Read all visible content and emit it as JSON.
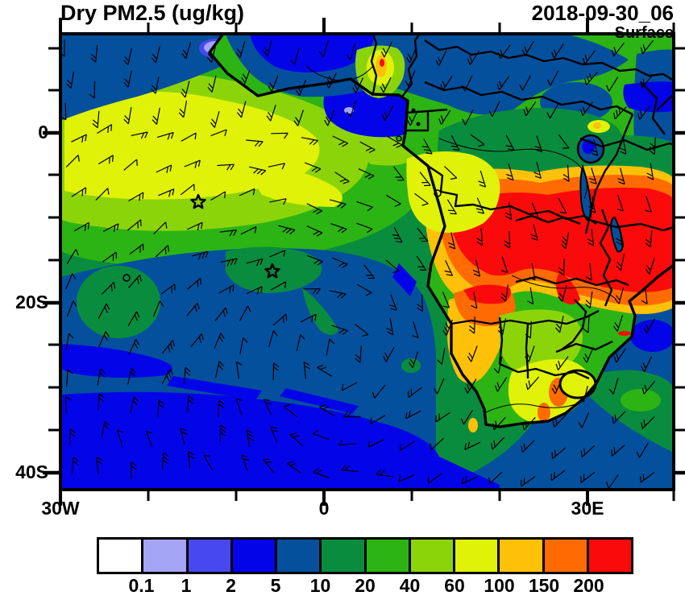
{
  "header": {
    "title": "Dry PM2.5 (ug/kg)",
    "datetime": "2018-09-30_06",
    "level": "Surface"
  },
  "axes": {
    "y_labels": [
      "0",
      "20S",
      "40S"
    ],
    "x_labels": [
      "30W",
      "0",
      "30E"
    ],
    "y_axis": "latitude",
    "x_axis": "longitude"
  },
  "colorbar": {
    "labels": [
      "0.1",
      "1",
      "2",
      "5",
      "10",
      "20",
      "40",
      "60",
      "100",
      "150",
      "200"
    ],
    "colors": [
      "#FFFFFF",
      "#A5A5F5",
      "#4848F0",
      "#0404E8",
      "#05509C",
      "#0A8C3E",
      "#2CB414",
      "#8CD40A",
      "#DFF207",
      "#FFC107",
      "#FF6B00",
      "#FA0A0A"
    ],
    "units": "ug/kg"
  },
  "chart_data": {
    "type": "heatmap",
    "title": "Dry PM2.5 (ug/kg)",
    "valid_time": "2018-09-30_06",
    "vertical_level": "Surface",
    "units": "ug/kg",
    "scale_breaks": [
      0.1,
      1,
      2,
      5,
      10,
      20,
      40,
      60,
      100,
      150,
      200
    ],
    "x_range_ticks": [
      "30W",
      "0",
      "30E"
    ],
    "y_range_ticks": [
      "0",
      "20S",
      "40S"
    ],
    "grid": false,
    "legend_position": "bottom",
    "field_summary": [
      {
        "region": "Sahel band across northern edge of map",
        "value_ug_kg": "2-10"
      },
      {
        "region": "Tropical South Atlantic smoke plume (0-8S, 30W-5E)",
        "value_ug_kg": "40-100"
      },
      {
        "region": "Gulf of Guinea coastal waters (Nigeria/Cameroon coast)",
        "value_ug_kg": "2-5"
      },
      {
        "region": "Congo Basin interior",
        "value_ug_kg": "10-40"
      },
      {
        "region": "Angola / S. DRC / Zambia biomass-burning core (8-17S)",
        "value_ug_kg": ">200 core, 100-200 fringe"
      },
      {
        "region": "Namibia / Botswana",
        "value_ug_kg": "60-150"
      },
      {
        "region": "South African interior / Highveld",
        "value_ug_kg": "40-100 with 150-200 spots"
      },
      {
        "region": "Subtropical South Atlantic (south of ~20S)",
        "value_ug_kg": "2-10"
      },
      {
        "region": "SW Indian Ocean off Mozambique",
        "value_ug_kg": "2-20"
      }
    ],
    "markers": [
      {
        "type": "star",
        "approx_position": "8S 14W"
      },
      {
        "type": "star",
        "approx_position": "16S 6W"
      }
    ],
    "overlays": [
      "surface wind barbs",
      "coastlines",
      "country borders",
      "lakes"
    ]
  }
}
